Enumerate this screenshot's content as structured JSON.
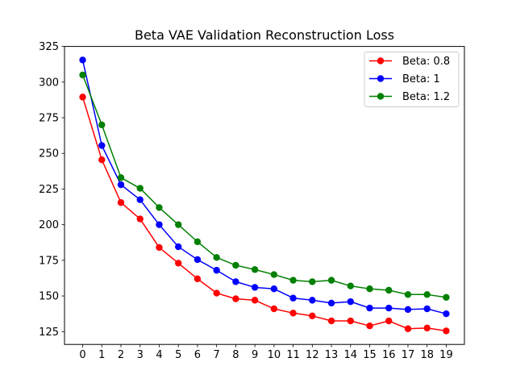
{
  "chart_data": {
    "type": "line",
    "title": "Beta VAE Validation Reconstruction Loss",
    "xlabel": "",
    "ylabel": "",
    "x": [
      0,
      1,
      2,
      3,
      4,
      5,
      6,
      7,
      8,
      9,
      10,
      11,
      12,
      13,
      14,
      15,
      16,
      17,
      18,
      19
    ],
    "xlim": [
      -0.95,
      19.95
    ],
    "ylim": [
      116,
      325
    ],
    "yticks": [
      125,
      150,
      175,
      200,
      225,
      250,
      275,
      300,
      325
    ],
    "grid": false,
    "legend_position": "top-right",
    "series": [
      {
        "name": "Beta: 0.8",
        "color": "#ff0000",
        "values": [
          289.5,
          245.5,
          215.5,
          204,
          184,
          173,
          162,
          152,
          148,
          147,
          141,
          138,
          136,
          132.5,
          132.5,
          129,
          132.5,
          127,
          127.5,
          125.5
        ]
      },
      {
        "name": "Beta: 1",
        "color": "#0000ff",
        "values": [
          315.5,
          255.5,
          228,
          217.5,
          200,
          184.5,
          175.5,
          168,
          160,
          156,
          155,
          148.5,
          147,
          145,
          146,
          141.5,
          141.5,
          140.5,
          141,
          137.5
        ]
      },
      {
        "name": "Beta: 1.2",
        "color": "#008000",
        "values": [
          305,
          270,
          233,
          225.5,
          212,
          200,
          188,
          177,
          171.5,
          168.5,
          165,
          161,
          160,
          161,
          157,
          155,
          154,
          151,
          151,
          149
        ]
      }
    ]
  }
}
